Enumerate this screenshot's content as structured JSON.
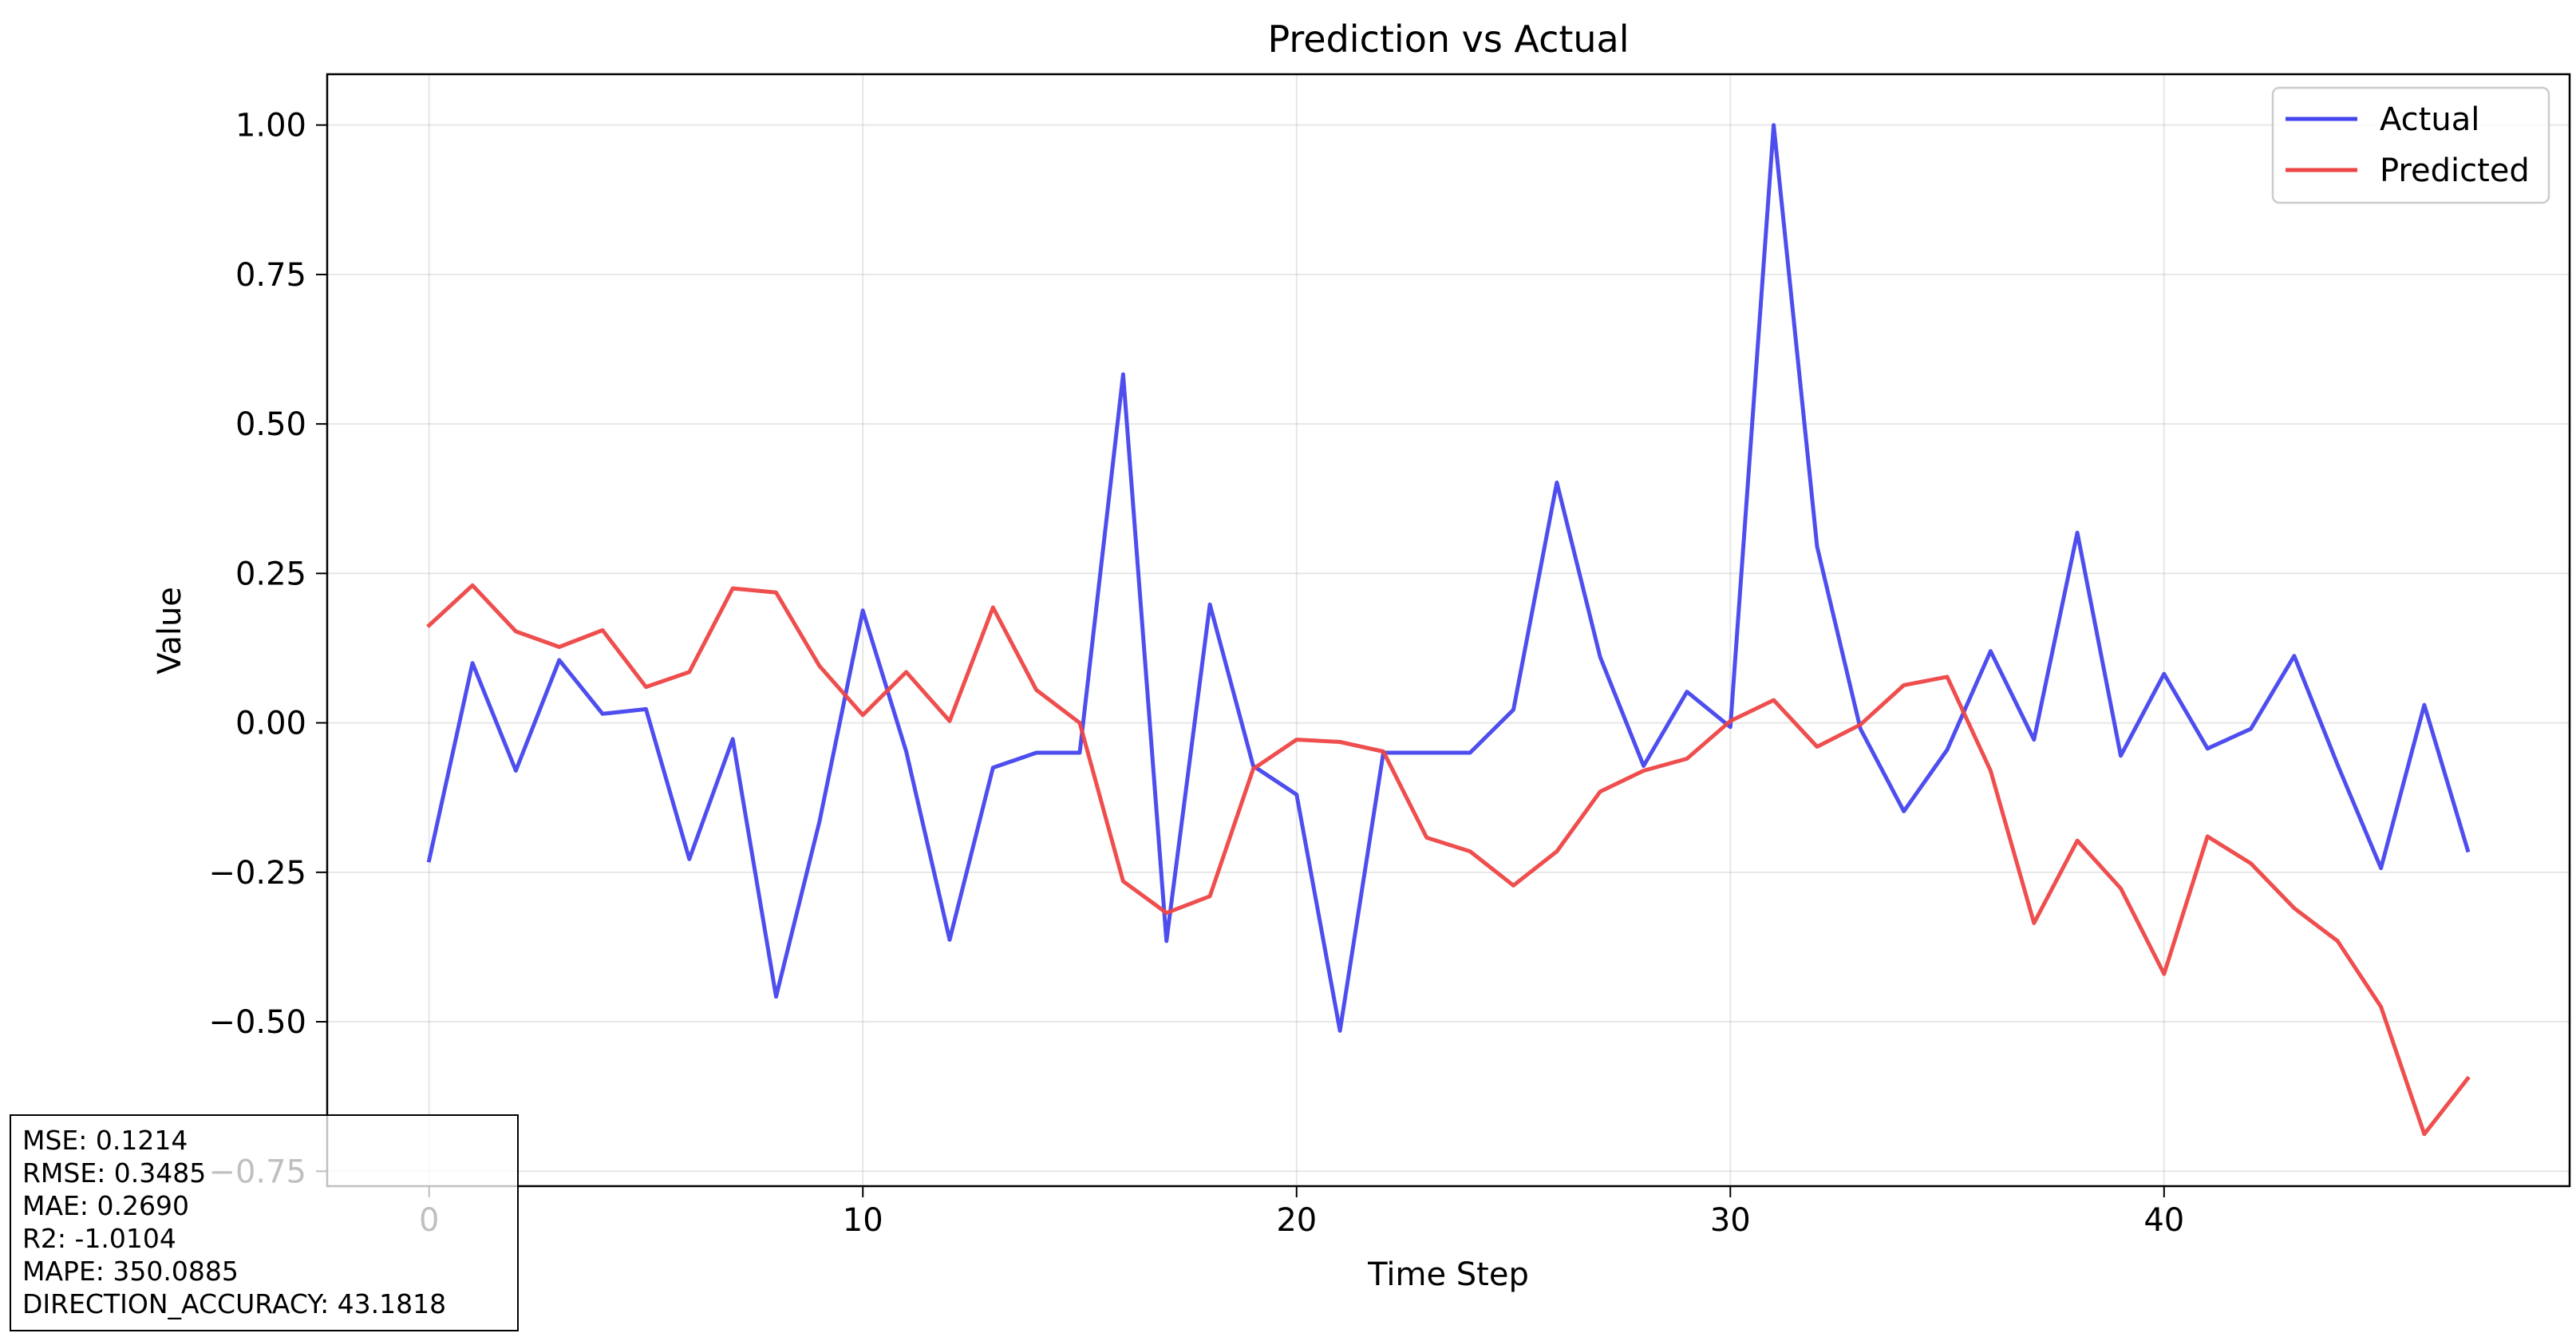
{
  "chart_data": {
    "type": "line",
    "title": "Prediction vs Actual",
    "xlabel": "Time Step",
    "ylabel": "Value",
    "xlim": [
      -2.35,
      49.35
    ],
    "ylim": [
      -0.775,
      1.085
    ],
    "xticks": [
      0,
      10,
      20,
      30,
      40
    ],
    "yticks": [
      -0.75,
      -0.5,
      -0.25,
      0.0,
      0.25,
      0.5,
      0.75,
      1.0
    ],
    "ytick_labels": [
      "−0.75",
      "−0.50",
      "−0.25",
      "0.00",
      "0.25",
      "0.50",
      "0.75",
      "1.00"
    ],
    "grid": true,
    "legend_position": "top-right",
    "x": [
      0,
      1,
      2,
      3,
      4,
      5,
      6,
      7,
      8,
      9,
      10,
      11,
      12,
      13,
      14,
      15,
      16,
      17,
      18,
      19,
      20,
      21,
      22,
      23,
      24,
      25,
      26,
      27,
      28,
      29,
      30,
      31,
      32,
      33,
      34,
      35,
      36,
      37,
      38,
      39,
      40,
      41,
      42,
      43,
      44,
      45,
      46,
      47
    ],
    "series": [
      {
        "name": "Actual",
        "color": "#4444ee",
        "values": [
          -0.23,
          0.1,
          -0.08,
          0.105,
          0.015,
          0.023,
          -0.228,
          -0.027,
          -0.458,
          -0.165,
          0.188,
          -0.048,
          -0.363,
          -0.075,
          -0.05,
          -0.05,
          0.583,
          -0.365,
          0.198,
          -0.072,
          -0.12,
          -0.515,
          -0.05,
          -0.05,
          -0.05,
          0.022,
          0.402,
          0.11,
          -0.072,
          0.052,
          -0.007,
          1.0,
          0.295,
          -0.01,
          -0.148,
          -0.045,
          0.12,
          -0.028,
          0.318,
          -0.055,
          0.082,
          -0.043,
          -0.01,
          0.112,
          -0.07,
          -0.243,
          0.03,
          -0.213
        ]
      },
      {
        "name": "Predicted",
        "color": "#ee4444",
        "values": [
          0.163,
          0.23,
          0.153,
          0.127,
          0.155,
          0.06,
          0.085,
          0.225,
          0.218,
          0.095,
          0.013,
          0.085,
          0.003,
          0.193,
          0.055,
          0.0,
          -0.265,
          -0.318,
          -0.29,
          -0.077,
          -0.028,
          -0.032,
          -0.048,
          -0.192,
          -0.215,
          -0.272,
          -0.215,
          -0.115,
          -0.08,
          -0.06,
          0.003,
          0.038,
          -0.04,
          -0.003,
          0.063,
          0.077,
          -0.08,
          -0.335,
          -0.197,
          -0.277,
          -0.42,
          -0.19,
          -0.235,
          -0.31,
          -0.365,
          -0.475,
          -0.688,
          -0.595
        ]
      }
    ]
  },
  "metrics": {
    "mse": "MSE: 0.1214",
    "rmse": "RMSE: 0.3485",
    "mae": "MAE: 0.2690",
    "r2": "R2: -1.0104",
    "mape": "MAPE: 350.0885",
    "direction_accuracy": "DIRECTION_ACCURACY: 43.1818"
  }
}
